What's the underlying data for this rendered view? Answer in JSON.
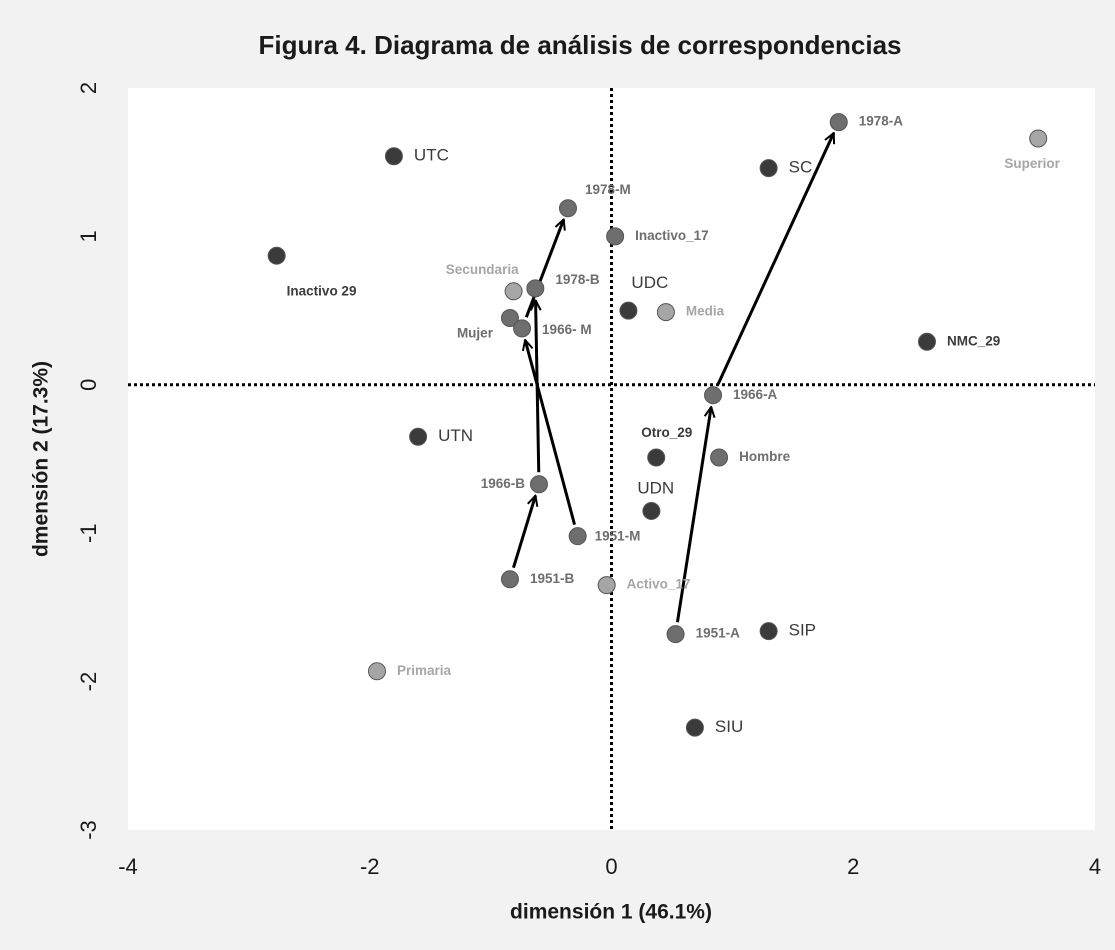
{
  "chart_data": {
    "type": "scatter",
    "title": "Figura 4. Diagrama de análisis de correspondencias",
    "x_label": "dimensión 1 (46.1%)",
    "y_label": "dmensión 2 (17.3%)",
    "xlim": [
      -4,
      4
    ],
    "xticks": [
      -4,
      -2,
      0,
      2,
      4
    ],
    "ylim": [
      -3,
      2
    ],
    "yticks": [
      2,
      1,
      0,
      -1,
      -2,
      -3
    ],
    "points": [
      {
        "label": "UTC",
        "x": -1.8,
        "y": 1.54,
        "color": "#3b3b3b"
      },
      {
        "label": "Inactivo 29",
        "x": -2.77,
        "y": 0.87,
        "color": "#3b3b3b"
      },
      {
        "label": "1978-M",
        "x": -0.36,
        "y": 1.19,
        "color": "#6e6e6e"
      },
      {
        "label": "Inactivo_17",
        "x": 0.03,
        "y": 1.0,
        "color": "#6e6e6e"
      },
      {
        "label": "Secundaria",
        "x": -0.81,
        "y": 0.63,
        "color": "#a6a6a6"
      },
      {
        "label": "1978-B",
        "x": -0.63,
        "y": 0.65,
        "color": "#6e6e6e"
      },
      {
        "label": "UDC",
        "x": 0.14,
        "y": 0.5,
        "color": "#3b3b3b"
      },
      {
        "label": "Media",
        "x": 0.45,
        "y": 0.49,
        "color": "#a6a6a6"
      },
      {
        "label": "Mujer",
        "x": -0.84,
        "y": 0.45,
        "color": "#6e6e6e"
      },
      {
        "label": "1966- M",
        "x": -0.74,
        "y": 0.38,
        "color": "#6e6e6e"
      },
      {
        "label": "1978-A",
        "x": 1.88,
        "y": 1.77,
        "color": "#6e6e6e"
      },
      {
        "label": "SC",
        "x": 1.3,
        "y": 1.46,
        "color": "#3b3b3b"
      },
      {
        "label": "Superior",
        "x": 3.53,
        "y": 1.66,
        "color": "#a6a6a6"
      },
      {
        "label": "NMC_29",
        "x": 2.61,
        "y": 0.29,
        "color": "#3b3b3b"
      },
      {
        "label": "1966-A",
        "x": 0.84,
        "y": -0.07,
        "color": "#6e6e6e"
      },
      {
        "label": "UTN",
        "x": -1.6,
        "y": -0.35,
        "color": "#3b3b3b"
      },
      {
        "label": "Otro_29",
        "x": 0.37,
        "y": -0.49,
        "color": "#3b3b3b"
      },
      {
        "label": "Hombre",
        "x": 0.89,
        "y": -0.49,
        "color": "#6e6e6e"
      },
      {
        "label": "1966-B",
        "x": -0.6,
        "y": -0.67,
        "color": "#6e6e6e"
      },
      {
        "label": "UDN",
        "x": 0.33,
        "y": -0.85,
        "color": "#3b3b3b"
      },
      {
        "label": "1951-M",
        "x": -0.28,
        "y": -1.02,
        "color": "#6e6e6e"
      },
      {
        "label": "1951-B",
        "x": -0.84,
        "y": -1.31,
        "color": "#6e6e6e"
      },
      {
        "label": "Activo_17",
        "x": -0.04,
        "y": -1.35,
        "color": "#a6a6a6"
      },
      {
        "label": "1951-A",
        "x": 0.53,
        "y": -1.68,
        "color": "#6e6e6e"
      },
      {
        "label": "SIP",
        "x": 1.3,
        "y": -1.66,
        "color": "#3b3b3b"
      },
      {
        "label": "Primaria",
        "x": -1.94,
        "y": -1.93,
        "color": "#a6a6a6"
      },
      {
        "label": "SIU",
        "x": 0.69,
        "y": -2.31,
        "color": "#3b3b3b"
      }
    ]
  }
}
